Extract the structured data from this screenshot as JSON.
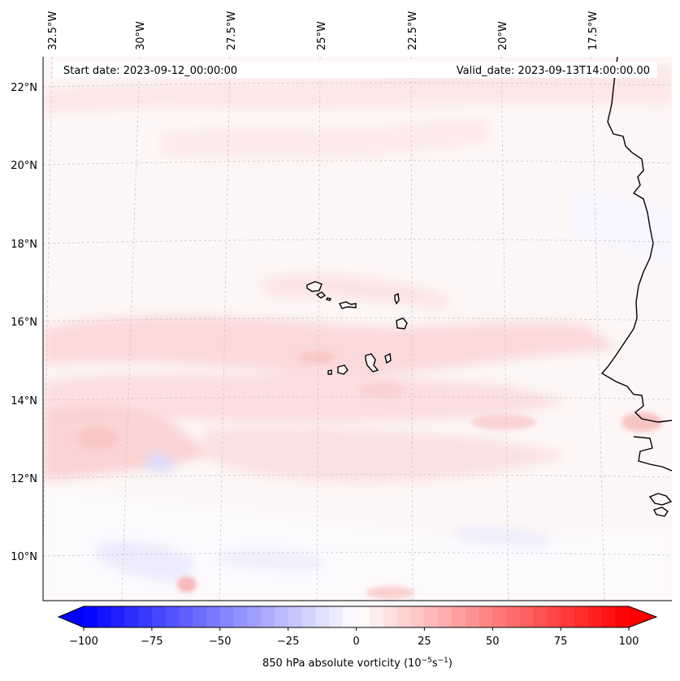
{
  "map": {
    "start_date_label": "Start date: 2023-09-12_00:00:00",
    "valid_date_label": "Valid_date: 2023-09-13T14:00:00.00",
    "lon_labels": [
      "32.5°W",
      "30°W",
      "27.5°W",
      "25°W",
      "22.5°W",
      "20°W",
      "17.5°W"
    ],
    "lat_labels": [
      "22°N",
      "20°N",
      "18°N",
      "16°N",
      "14°N",
      "12°N",
      "10°N"
    ],
    "field_name": "850 hPa absolute vorticity"
  },
  "colorbar": {
    "title": "850 hPa absolute vorticity (10",
    "title_exp1": "−5",
    "title_mid": "s",
    "title_exp2": "−1",
    "title_end": ")",
    "tick_labels": [
      "−100",
      "−75",
      "−50",
      "−25",
      "0",
      "25",
      "50",
      "75",
      "100"
    ],
    "tick_values": [
      -100,
      -75,
      -50,
      -25,
      0,
      25,
      50,
      75,
      100
    ],
    "vmin": -100,
    "vmax": 100,
    "levels": 40,
    "cmap": "bwr",
    "extend": "both"
  },
  "colors": {
    "negative": "#0000ff",
    "zero": "#ffffff",
    "positive": "#ff0000",
    "coast": "#000000",
    "grid": "#c8c8c8"
  }
}
